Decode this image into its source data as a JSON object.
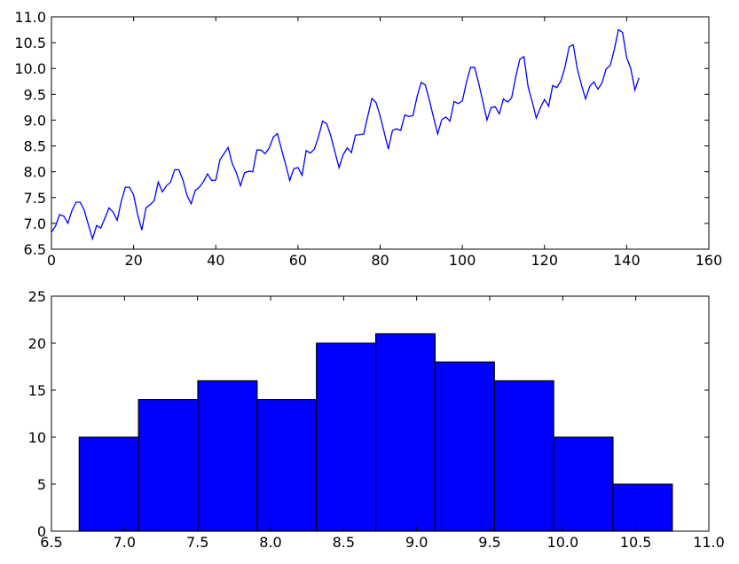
{
  "chart_data": [
    {
      "type": "line",
      "title": "",
      "xlabel": "",
      "ylabel": "",
      "xlim": [
        0,
        160
      ],
      "ylim": [
        6.5,
        11.0
      ],
      "xticks": [
        0,
        20,
        40,
        60,
        80,
        100,
        120,
        140,
        160
      ],
      "yticks": [
        6.5,
        7.0,
        7.5,
        8.0,
        8.5,
        9.0,
        9.5,
        10.0,
        10.5,
        11.0
      ],
      "xtick_labels": [
        "0",
        "20",
        "40",
        "60",
        "80",
        "100",
        "120",
        "140",
        "160"
      ],
      "ytick_labels": [
        "6.5",
        "7.0",
        "7.5",
        "8.0",
        "8.5",
        "9.0",
        "9.5",
        "10.0",
        "10.5",
        "11.0"
      ],
      "grid": false,
      "color": "#0000ff",
      "series": [
        {
          "x": [
            0,
            1,
            2,
            3,
            4,
            5,
            6,
            7,
            8,
            9,
            10,
            11,
            12,
            13,
            14,
            15,
            16,
            17,
            18,
            19,
            20,
            21,
            22,
            23,
            24,
            25,
            26,
            27,
            28,
            29,
            30,
            31,
            32,
            33,
            34,
            35,
            36,
            37,
            38,
            39,
            40,
            41,
            42,
            43,
            44,
            45,
            46,
            47,
            48,
            49,
            50,
            51,
            52,
            53,
            54,
            55,
            56,
            57,
            58,
            59,
            60,
            61,
            62,
            63,
            64,
            65,
            66,
            67,
            68,
            69,
            70,
            71,
            72,
            73,
            74,
            75,
            76,
            77,
            78,
            79,
            80,
            81,
            82,
            83,
            84,
            85,
            86,
            87,
            88,
            89,
            90,
            91,
            92,
            93,
            94,
            95,
            96,
            97,
            98,
            99,
            100,
            101,
            102,
            103,
            104,
            105,
            106,
            107,
            108,
            109,
            110,
            111,
            112,
            113,
            114,
            115,
            116,
            117,
            118,
            119,
            120,
            121,
            122,
            123,
            124,
            125,
            126,
            127,
            128,
            129,
            130,
            131,
            132,
            133,
            134,
            135,
            136,
            137,
            138,
            139,
            140,
            141,
            142,
            143
          ],
          "y": [
            6.83,
            6.95,
            7.17,
            7.14,
            7.0,
            7.25,
            7.41,
            7.41,
            7.25,
            6.97,
            6.7,
            6.96,
            6.91,
            7.1,
            7.3,
            7.22,
            7.06,
            7.43,
            7.7,
            7.7,
            7.55,
            7.16,
            6.87,
            7.3,
            7.36,
            7.44,
            7.8,
            7.61,
            7.73,
            7.8,
            8.04,
            8.04,
            7.84,
            7.54,
            7.38,
            7.64,
            7.7,
            7.81,
            7.96,
            7.83,
            7.84,
            8.23,
            8.35,
            8.47,
            8.16,
            7.98,
            7.73,
            7.98,
            8.01,
            8.0,
            8.42,
            8.42,
            8.35,
            8.46,
            8.67,
            8.74,
            8.43,
            8.14,
            7.83,
            8.06,
            8.08,
            7.93,
            8.41,
            8.36,
            8.44,
            8.68,
            8.98,
            8.93,
            8.69,
            8.38,
            8.08,
            8.33,
            8.46,
            8.37,
            8.71,
            8.72,
            8.73,
            9.08,
            9.42,
            9.34,
            9.08,
            8.76,
            8.44,
            8.8,
            8.83,
            8.8,
            9.1,
            9.07,
            9.09,
            9.46,
            9.73,
            9.68,
            9.38,
            9.05,
            8.73,
            9.01,
            9.06,
            8.98,
            9.36,
            9.32,
            9.37,
            9.73,
            10.02,
            10.02,
            9.71,
            9.36,
            9.0,
            9.24,
            9.26,
            9.12,
            9.41,
            9.35,
            9.43,
            9.84,
            10.18,
            10.23,
            9.65,
            9.36,
            9.04,
            9.24,
            9.4,
            9.27,
            9.67,
            9.63,
            9.76,
            10.03,
            10.42,
            10.46,
            9.99,
            9.68,
            9.41,
            9.65,
            9.74,
            9.6,
            9.72,
            9.99,
            10.06,
            10.37,
            10.75,
            10.7,
            10.21,
            10.0,
            9.58,
            9.82
          ]
        }
      ]
    },
    {
      "type": "bar",
      "subtype": "histogram",
      "title": "",
      "xlabel": "",
      "ylabel": "",
      "xlim": [
        6.5,
        11.0
      ],
      "ylim": [
        0,
        25
      ],
      "xticks": [
        6.5,
        7.0,
        7.5,
        8.0,
        8.5,
        9.0,
        9.5,
        10.0,
        10.5,
        11.0
      ],
      "yticks": [
        0,
        5,
        10,
        15,
        20,
        25
      ],
      "xtick_labels": [
        "6.5",
        "7.0",
        "7.5",
        "8.0",
        "8.5",
        "9.0",
        "9.5",
        "10.0",
        "10.5",
        "11.0"
      ],
      "ytick_labels": [
        "0",
        "5",
        "10",
        "15",
        "20",
        "25"
      ],
      "grid": false,
      "color": "#0000ff",
      "bin_edges": [
        6.69,
        7.096,
        7.502,
        7.908,
        8.314,
        8.72,
        9.126,
        9.532,
        9.938,
        10.344,
        10.75
      ],
      "values": [
        10,
        14,
        16,
        14,
        20,
        21,
        18,
        16,
        10,
        5
      ]
    }
  ]
}
